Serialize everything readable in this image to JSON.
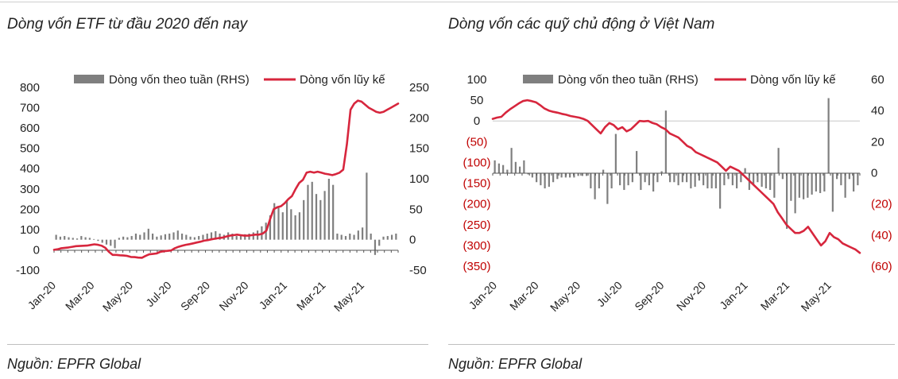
{
  "colors": {
    "bar": "#7f7f7f",
    "line": "#d7263d",
    "neg_label": "#c00000",
    "axis": "#222222",
    "zero_line": "#c8c8c8"
  },
  "left": {
    "title": "Dòng vốn ETF từ đầu 2020 đến nay",
    "source": "Nguồn: EPFR Global"
  },
  "right": {
    "title": "Dòng vốn các quỹ chủ động ở Việt Nam",
    "source": "Nguồn: EPFR Global"
  },
  "chart_data": [
    {
      "type": "bar+line",
      "title": "Dòng vốn ETF từ đầu 2020 đến nay",
      "legend": [
        "Dòng vốn theo tuần (RHS)",
        "Dòng vốn lũy kế"
      ],
      "x_tick_labels": [
        "Jan-20",
        "Mar-20",
        "May-20",
        "Jul-20",
        "Sep-20",
        "Nov-20",
        "Jan-21",
        "Mar-21",
        "May-21"
      ],
      "y_left_ticks": [
        "800",
        "700",
        "600",
        "500",
        "400",
        "300",
        "200",
        "100",
        "0",
        "-100"
      ],
      "y_left_range": [
        -100,
        800
      ],
      "y_right_ticks": [
        "250",
        "200",
        "150",
        "100",
        "50",
        "0",
        "-50"
      ],
      "y_right_range": [
        -50,
        250
      ],
      "series": [
        {
          "name": "Dòng vốn theo tuần (RHS)",
          "axis": "right",
          "values": [
            8,
            5,
            6,
            4,
            3,
            2,
            6,
            4,
            3,
            1,
            -2,
            -5,
            -8,
            -10,
            -14,
            3,
            5,
            4,
            6,
            10,
            8,
            12,
            18,
            10,
            5,
            7,
            9,
            10,
            12,
            15,
            10,
            8,
            5,
            4,
            6,
            8,
            10,
            12,
            14,
            10,
            8,
            12,
            10,
            6,
            8,
            9,
            10,
            12,
            15,
            22,
            28,
            40,
            60,
            55,
            45,
            65,
            50,
            40,
            45,
            65,
            90,
            95,
            75,
            65,
            80,
            100,
            90,
            10,
            8,
            6,
            10,
            8,
            15,
            20,
            110,
            10,
            -25,
            -10,
            5,
            6,
            8,
            10
          ]
        },
        {
          "name": "Dòng vốn lũy kế",
          "axis": "left",
          "values": [
            0,
            3,
            8,
            10,
            12,
            15,
            18,
            19,
            20,
            21,
            24,
            27,
            25,
            20,
            10,
            -10,
            -25,
            -25,
            -27,
            -28,
            -30,
            -35,
            -36,
            -38,
            -39,
            -30,
            -22,
            -20,
            -18,
            -10,
            -7,
            -5,
            -3,
            8,
            15,
            20,
            25,
            28,
            32,
            36,
            40,
            45,
            48,
            52,
            55,
            58,
            60,
            65,
            70,
            72,
            75,
            72,
            70,
            70,
            72,
            75,
            75,
            80,
            95,
            150,
            200,
            210,
            215,
            230,
            250,
            265,
            300,
            330,
            345,
            380,
            385,
            380,
            385,
            380,
            375,
            372,
            368,
            373,
            380,
            395,
            520,
            690,
            720,
            735,
            730,
            715,
            700,
            690,
            680,
            675,
            680,
            690,
            700,
            710,
            720
          ]
        }
      ]
    },
    {
      "type": "bar+line",
      "title": "Dòng vốn các quỹ chủ động ở Việt Nam",
      "legend": [
        "Dòng vốn theo tuần (RHS)",
        "Dòng vốn lũy kế"
      ],
      "x_tick_labels": [
        "Jan-20",
        "Mar-20",
        "May-20",
        "Jul-20",
        "Sep-20",
        "Nov-20",
        "Jan-21",
        "Mar-21",
        "May-21"
      ],
      "y_left_ticks": [
        "100",
        "50",
        "0",
        "(50)",
        "(100)",
        "(150)",
        "(200)",
        "(250)",
        "(300)",
        "(350)"
      ],
      "y_left_range": [
        -350,
        100
      ],
      "y_right_ticks": [
        "60",
        "40",
        "20",
        "0",
        "(20)",
        "(40)",
        "(60)"
      ],
      "y_right_range": [
        -60,
        60
      ],
      "series": [
        {
          "name": "Dòng vốn theo tuần (RHS)",
          "axis": "right",
          "values": [
            8,
            6,
            5,
            2,
            16,
            7,
            4,
            8,
            -1,
            -3,
            -6,
            -8,
            -10,
            -9,
            -6,
            -4,
            -3,
            -3,
            -3,
            -3,
            -2,
            -2,
            -2,
            -10,
            -17,
            -10,
            2,
            -20,
            -10,
            25,
            -8,
            -11,
            -8,
            -6,
            14,
            -11,
            -6,
            -8,
            -12,
            -6,
            1,
            40,
            -6,
            -6,
            -8,
            -6,
            -6,
            -10,
            -9,
            -5,
            -8,
            -10,
            -10,
            -10,
            -23,
            -8,
            -4,
            -8,
            -10,
            -6,
            3,
            -11,
            -8,
            -6,
            -9,
            -10,
            -11,
            -16,
            16,
            -4,
            -36,
            -18,
            -26,
            -16,
            -17,
            -16,
            -14,
            -12,
            -13,
            -12,
            48,
            -25,
            -4,
            -8,
            -16,
            -4,
            -12,
            -8
          ]
        },
        {
          "name": "Dòng vốn lũy kế",
          "axis": "left",
          "values": [
            5,
            8,
            10,
            20,
            28,
            35,
            42,
            48,
            50,
            48,
            45,
            38,
            30,
            25,
            22,
            20,
            17,
            15,
            12,
            10,
            8,
            5,
            0,
            -10,
            -20,
            -30,
            -15,
            -5,
            -10,
            -20,
            -15,
            -25,
            -20,
            -10,
            0,
            -1,
            0,
            -5,
            -8,
            -15,
            -20,
            -30,
            -35,
            -40,
            -50,
            -60,
            -65,
            -75,
            -80,
            -85,
            -90,
            -95,
            -100,
            -110,
            -120,
            -110,
            -115,
            -120,
            -130,
            -140,
            -150,
            -160,
            -170,
            -180,
            -190,
            -200,
            -220,
            -235,
            -250,
            -260,
            -270,
            -270,
            -265,
            -255,
            -270,
            -285,
            -300,
            -290,
            -270,
            -280,
            -285,
            -295,
            -300,
            -305,
            -310,
            -318
          ]
        }
      ]
    }
  ]
}
